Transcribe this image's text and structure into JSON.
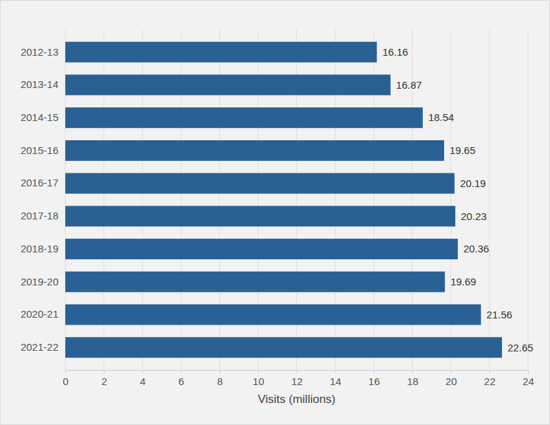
{
  "chart_data": {
    "type": "bar",
    "orientation": "horizontal",
    "categories": [
      "2012-13",
      "2013-14",
      "2014-15",
      "2015-16",
      "2016-17",
      "2017-18",
      "2018-19",
      "2019-20",
      "2020-21",
      "2021-22"
    ],
    "values": [
      16.16,
      16.87,
      18.54,
      19.65,
      20.19,
      20.23,
      20.36,
      19.69,
      21.56,
      22.65
    ],
    "color": "#2a6195",
    "x_label": "Visits (millions)",
    "xlim": [
      0,
      24
    ],
    "xticks": [
      0,
      2,
      4,
      6,
      8,
      10,
      12,
      14,
      16,
      18,
      20,
      22,
      24
    ],
    "grid": true,
    "data_labels": true
  }
}
